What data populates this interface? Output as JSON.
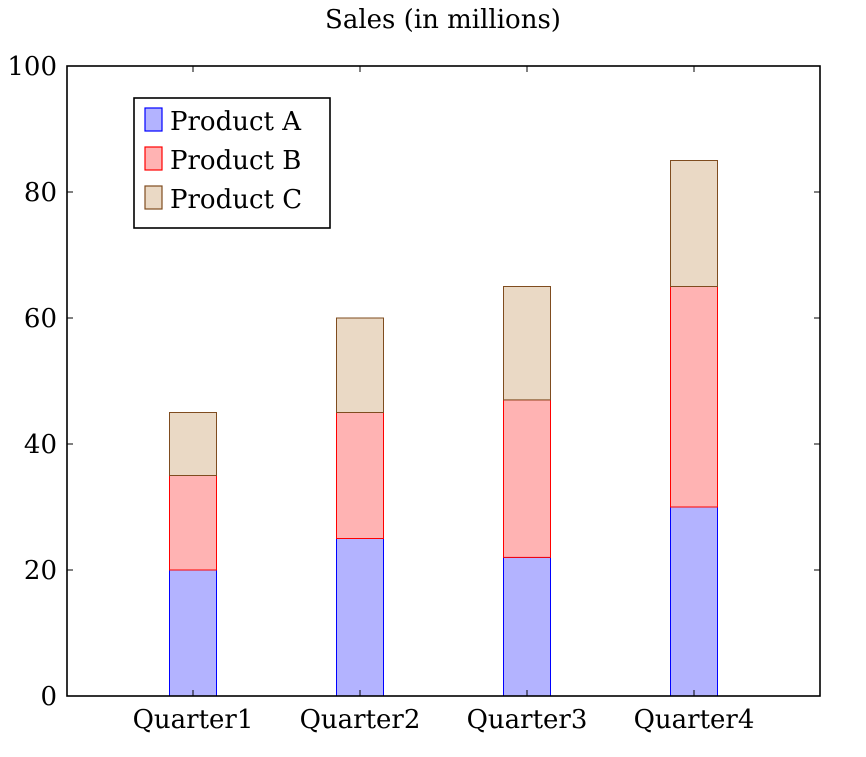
{
  "chart_data": {
    "type": "bar",
    "stacked": true,
    "title": "Sales (in millions)",
    "xlabel": "",
    "ylabel": "",
    "categories": [
      "Quarter1",
      "Quarter2",
      "Quarter3",
      "Quarter4"
    ],
    "ylim": [
      0,
      100
    ],
    "yticks": [
      "0",
      "20",
      "40",
      "60",
      "80",
      "100"
    ],
    "grid": false,
    "legend_position": "top-left",
    "series": [
      {
        "name": "Product A",
        "values": [
          20,
          25,
          22,
          30
        ],
        "fill": "#b3b3ff",
        "stroke": "#0000ff"
      },
      {
        "name": "Product B",
        "values": [
          15,
          20,
          25,
          35
        ],
        "fill": "#ffb3b3",
        "stroke": "#ff0000"
      },
      {
        "name": "Product C",
        "values": [
          10,
          15,
          18,
          20
        ],
        "fill": "#ead9c5",
        "stroke": "#7f4c1f"
      }
    ]
  }
}
